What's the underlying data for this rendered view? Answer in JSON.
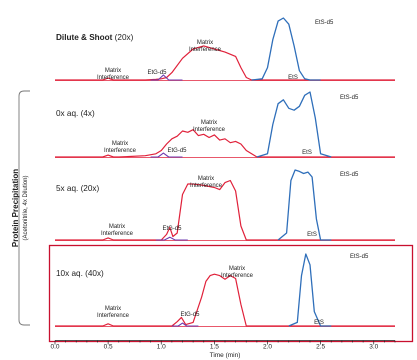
{
  "chart_data": {
    "type": "line",
    "xlabel": "Time (min)",
    "xlim": [
      0.0,
      3.2
    ],
    "x_ticks": [
      "0.0",
      "0.5",
      "1.0",
      "1.5",
      "2.0",
      "2.5",
      "3.0"
    ],
    "x_tick_values": [
      0.0,
      0.5,
      1.0,
      1.5,
      2.0,
      2.5,
      3.0
    ],
    "group_label": "Protein Precipitation",
    "group_sublabel": "(Acetonitrile, 4x Dilution)",
    "highlighted_panel": "10x aq. (40x)",
    "colors": {
      "red": "#e0213a",
      "blue": "#2f6fba",
      "purple": "#6d3bb0",
      "axis": "#222222",
      "box": "#c8102e"
    },
    "panels": [
      {
        "title_bold": "Dilute & Shoot",
        "title_rest": " (20x)",
        "labels": [
          "Matrix",
          "Interference",
          "EtG-d5",
          "Matrix",
          "Interference",
          "EtS-d5",
          "EtS"
        ],
        "red_series": {
          "x": [
            0.0,
            0.45,
            0.5,
            0.55,
            0.6,
            0.85,
            0.95,
            1.0,
            1.05,
            1.1,
            1.2,
            1.3,
            1.4,
            1.5,
            1.6,
            1.7,
            1.75,
            1.8,
            1.85,
            1.95,
            3.2
          ],
          "y": [
            0.0,
            0.0,
            0.03,
            0.0,
            0.0,
            0.0,
            0.01,
            0.02,
            0.04,
            0.12,
            0.35,
            0.5,
            0.55,
            0.5,
            0.45,
            0.38,
            0.2,
            0.04,
            0.0,
            0.0,
            0.0
          ]
        },
        "blue_series": {
          "x": [
            1.85,
            1.95,
            2.0,
            2.05,
            2.1,
            2.15,
            2.2,
            2.25,
            2.3,
            2.35,
            2.4,
            2.5
          ],
          "y": [
            0.0,
            0.02,
            0.2,
            0.65,
            0.95,
            1.0,
            0.9,
            0.55,
            0.15,
            0.02,
            0.0,
            0.0
          ]
        },
        "purple_series": {
          "x": [
            0.9,
            0.97,
            1.02,
            1.07,
            1.2
          ],
          "y": [
            0.0,
            0.0,
            0.08,
            0.0,
            0.0
          ]
        }
      },
      {
        "title_bold": "",
        "title_rest": "0x aq. (4x)",
        "labels": [
          "Matrix",
          "Interference",
          "EtG-d5",
          "Matrix",
          "Interference",
          "EtS-d5",
          "EtS"
        ],
        "red_series": {
          "x": [
            0.0,
            0.45,
            0.5,
            0.55,
            0.6,
            0.85,
            0.95,
            1.0,
            1.05,
            1.1,
            1.15,
            1.2,
            1.25,
            1.3,
            1.35,
            1.4,
            1.45,
            1.5,
            1.55,
            1.6,
            1.65,
            1.7,
            1.75,
            1.8,
            1.9,
            3.2
          ],
          "y": [
            0.0,
            0.0,
            0.03,
            0.0,
            0.0,
            0.02,
            0.05,
            0.1,
            0.2,
            0.28,
            0.32,
            0.4,
            0.38,
            0.42,
            0.33,
            0.35,
            0.3,
            0.34,
            0.26,
            0.28,
            0.22,
            0.24,
            0.2,
            0.1,
            0.0,
            0.0
          ]
        },
        "blue_series": {
          "x": [
            1.9,
            2.0,
            2.05,
            2.1,
            2.15,
            2.2,
            2.25,
            2.3,
            2.35,
            2.4,
            2.45,
            2.5,
            2.6
          ],
          "y": [
            0.0,
            0.05,
            0.5,
            0.82,
            0.88,
            0.75,
            0.72,
            0.78,
            0.95,
            1.0,
            0.6,
            0.05,
            0.0
          ]
        },
        "purple_series": {
          "x": [
            0.9,
            0.97,
            1.02,
            1.07,
            1.2
          ],
          "y": [
            0.0,
            0.0,
            0.06,
            0.0,
            0.0
          ]
        }
      },
      {
        "title_bold": "",
        "title_rest": "5x aq. (20x)",
        "labels": [
          "Matrix",
          "Interference",
          "EtG-d5",
          "Matrix",
          "Interference",
          "EtS-d5",
          "EtS"
        ],
        "red_series": {
          "x": [
            0.0,
            0.45,
            0.5,
            0.55,
            0.6,
            1.0,
            1.05,
            1.08,
            1.11,
            1.15,
            1.2,
            1.25,
            1.3,
            1.4,
            1.5,
            1.55,
            1.6,
            1.65,
            1.7,
            1.75,
            1.8,
            2.2,
            3.2
          ],
          "y": [
            0.0,
            0.0,
            0.03,
            0.0,
            0.0,
            0.0,
            0.08,
            0.18,
            0.05,
            0.1,
            0.65,
            0.8,
            0.8,
            0.78,
            0.75,
            0.72,
            0.82,
            0.85,
            0.7,
            0.2,
            0.0,
            0.0,
            0.0
          ]
        },
        "blue_series": {
          "x": [
            2.1,
            2.18,
            2.22,
            2.26,
            2.3,
            2.34,
            2.38,
            2.42,
            2.46,
            2.5,
            2.6
          ],
          "y": [
            0.0,
            0.1,
            0.85,
            1.0,
            0.98,
            0.95,
            0.97,
            0.9,
            0.3,
            0.0,
            0.0
          ]
        },
        "purple_series": {
          "x": [
            0.95,
            1.03,
            1.08,
            1.13,
            1.25
          ],
          "y": [
            0.0,
            0.0,
            0.04,
            0.0,
            0.0
          ]
        }
      },
      {
        "title_bold": "",
        "title_rest": "10x aq. (40x)",
        "labels": [
          "Matrix",
          "Interference",
          "EtG-d5",
          "Matrix",
          "Interference",
          "EtS-d5",
          "EtS"
        ],
        "red_series": {
          "x": [
            0.0,
            0.45,
            0.5,
            0.55,
            0.6,
            1.1,
            1.15,
            1.19,
            1.23,
            1.3,
            1.38,
            1.42,
            1.46,
            1.5,
            1.55,
            1.6,
            1.65,
            1.7,
            1.75,
            1.8,
            2.2,
            3.2
          ],
          "y": [
            0.0,
            0.0,
            0.03,
            0.0,
            0.0,
            0.0,
            0.06,
            0.12,
            0.02,
            0.05,
            0.4,
            0.62,
            0.7,
            0.72,
            0.7,
            0.65,
            0.7,
            0.66,
            0.3,
            0.0,
            0.0,
            0.0
          ]
        },
        "blue_series": {
          "x": [
            2.2,
            2.28,
            2.32,
            2.36,
            2.4,
            2.44,
            2.5,
            2.6
          ],
          "y": [
            0.0,
            0.05,
            0.7,
            1.0,
            0.85,
            0.2,
            0.0,
            0.0
          ]
        },
        "purple_series": {
          "x": [
            1.1,
            1.16,
            1.2,
            1.24,
            1.35
          ],
          "y": [
            0.0,
            0.0,
            0.04,
            0.0,
            0.0
          ]
        }
      }
    ]
  }
}
